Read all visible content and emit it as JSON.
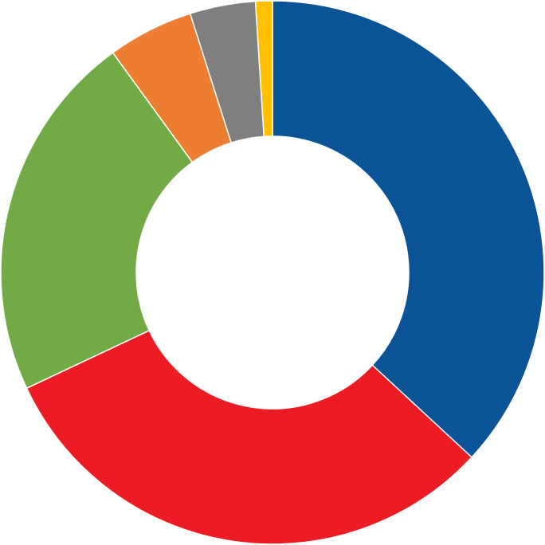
{
  "chart_data": {
    "type": "pie",
    "values": [
      36.9,
      31.1,
      22.0,
      5.1,
      3.9,
      1.0
    ],
    "colors": [
      "#0a5396",
      "#ed1c24",
      "#72ab46",
      "#ed7d31",
      "#7f7f7f",
      "#ffc000"
    ]
  }
}
